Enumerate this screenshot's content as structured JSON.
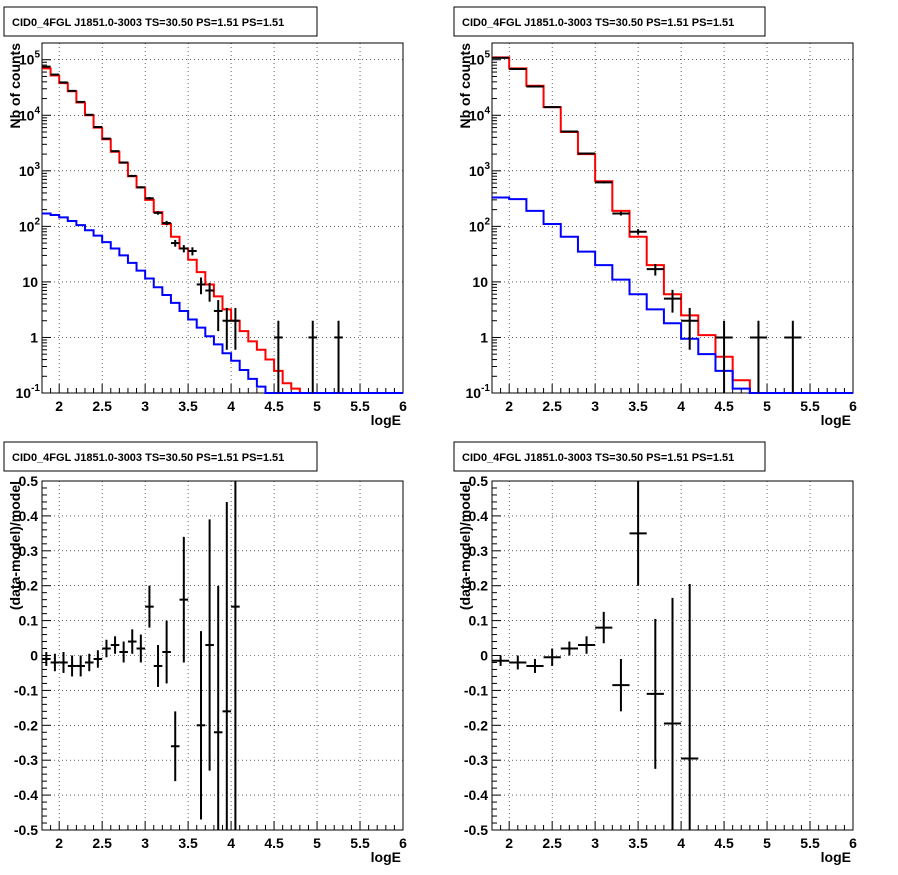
{
  "chart_data": [
    {
      "type": "histogram",
      "title": "CID0_4FGL J1851.0-3003 TS=30.50 PS=1.51 PS=1.51",
      "xlabel": "logE",
      "ylabel": "Nb of counts",
      "xlim": [
        1.8,
        6.0
      ],
      "ylim": [
        0.1,
        200000
      ],
      "yscale": "log",
      "grid": true,
      "x_ticks": [
        "2",
        "2.5",
        "3",
        "3.5",
        "4",
        "4.5",
        "5",
        "5.5",
        "6"
      ],
      "y_ticks": [
        "10^-1",
        "1",
        "10",
        "10^2",
        "10^3",
        "10^4",
        "10^5"
      ],
      "bin_width": 0.1,
      "series": [
        {
          "color": "#ff0000",
          "kind": "step",
          "x": [
            1.8,
            1.9,
            2.0,
            2.1,
            2.2,
            2.3,
            2.4,
            2.5,
            2.6,
            2.7,
            2.8,
            2.9,
            3.0,
            3.1,
            3.2,
            3.3,
            3.4,
            3.5,
            3.6,
            3.7,
            3.8,
            3.9,
            4.0,
            4.1,
            4.2,
            4.3,
            4.4,
            4.5,
            4.6,
            4.7,
            4.8,
            4.9,
            5.0,
            5.1
          ],
          "values": [
            70000,
            52000,
            38000,
            27000,
            17000,
            10000,
            6000,
            3700,
            2200,
            1400,
            800,
            500,
            300,
            180,
            110,
            65,
            40,
            25,
            15,
            9,
            5.5,
            3.2,
            2,
            1.3,
            0.85,
            0.6,
            0.4,
            0.25,
            0.15,
            0.12,
            0.1,
            0.1,
            0.1,
            0.1
          ]
        },
        {
          "color": "#0000ff",
          "kind": "step",
          "x": [
            1.8,
            1.9,
            2.0,
            2.1,
            2.2,
            2.3,
            2.4,
            2.5,
            2.6,
            2.7,
            2.8,
            2.9,
            3.0,
            3.1,
            3.2,
            3.3,
            3.4,
            3.5,
            3.6,
            3.7,
            3.8,
            3.9,
            4.0,
            4.1,
            4.2,
            4.3,
            4.4,
            4.5,
            4.6,
            4.7,
            4.8,
            4.9,
            5.0,
            5.1
          ],
          "values": [
            170,
            160,
            145,
            125,
            105,
            85,
            68,
            52,
            40,
            30,
            22,
            16,
            11.5,
            8,
            5.8,
            4.2,
            3,
            2.1,
            1.5,
            1.05,
            0.75,
            0.52,
            0.38,
            0.26,
            0.18,
            0.13,
            0.1,
            0.1,
            0.1,
            0.1,
            0.1,
            0.1,
            0.1,
            0.1
          ]
        },
        {
          "color": "#000000",
          "kind": "errorbar",
          "x": [
            1.85,
            1.95,
            2.05,
            2.15,
            2.25,
            2.35,
            2.45,
            2.55,
            2.65,
            2.75,
            2.85,
            2.95,
            3.05,
            3.15,
            3.25,
            3.35,
            3.45,
            3.55,
            3.65,
            3.75,
            3.85,
            3.95,
            4.05,
            4.55,
            4.95,
            5.25
          ],
          "values": [
            75000,
            54000,
            39000,
            27500,
            17400,
            10200,
            6150,
            3800,
            2260,
            1410,
            810,
            505,
            320,
            175,
            115,
            50,
            40,
            36,
            9,
            7,
            3,
            2,
            2,
            1,
            1,
            1
          ],
          "xerr": 0.05,
          "yerr_low": [
            270,
            230,
            200,
            165,
            130,
            100,
            78,
            62,
            48,
            37,
            28,
            22,
            18,
            13,
            10.5,
            7,
            6,
            6,
            3,
            2.6,
            1.7,
            1.4,
            1.4,
            0.9,
            0.9,
            0.9
          ],
          "yerr_high": [
            270,
            230,
            200,
            165,
            130,
            100,
            78,
            62,
            48,
            37,
            28,
            22,
            18,
            13,
            10.5,
            7,
            6,
            6,
            3,
            2.6,
            1.7,
            1.4,
            1.4,
            1,
            1,
            1
          ]
        }
      ]
    },
    {
      "type": "histogram",
      "title": "CID0_4FGL J1851.0-3003 TS=30.50 PS=1.51 PS=1.51",
      "xlabel": "logE",
      "ylabel": "Nb of counts",
      "xlim": [
        1.8,
        6.0
      ],
      "ylim": [
        0.1,
        200000
      ],
      "yscale": "log",
      "grid": true,
      "x_ticks": [
        "2",
        "2.5",
        "3",
        "3.5",
        "4",
        "4.5",
        "5",
        "5.5",
        "6"
      ],
      "y_ticks": [
        "10^-1",
        "1",
        "10",
        "10^2",
        "10^3",
        "10^4",
        "10^5"
      ],
      "bin_width": 0.2,
      "series": [
        {
          "color": "#ff0000",
          "kind": "step",
          "x": [
            1.8,
            2.0,
            2.2,
            2.4,
            2.6,
            2.8,
            3.0,
            3.2,
            3.4,
            3.6,
            3.8,
            4.0,
            4.2,
            4.4,
            4.6,
            4.8,
            5.0
          ],
          "values": [
            110000,
            70000,
            34000,
            14000,
            5000,
            2000,
            650,
            190,
            65,
            20,
            6,
            2.5,
            1.1,
            0.45,
            0.17,
            0.1,
            0.1
          ]
        },
        {
          "color": "#0000ff",
          "kind": "step",
          "x": [
            1.8,
            2.0,
            2.2,
            2.4,
            2.6,
            2.8,
            3.0,
            3.2,
            3.4,
            3.6,
            3.8,
            4.0,
            4.2,
            4.4,
            4.6,
            4.8,
            5.0
          ],
          "values": [
            330,
            310,
            190,
            110,
            65,
            35,
            20,
            11,
            6,
            3.2,
            1.8,
            0.95,
            0.5,
            0.25,
            0.12,
            0.1,
            0.1
          ]
        },
        {
          "color": "#000000",
          "kind": "errorbar",
          "x": [
            1.9,
            2.1,
            2.3,
            2.5,
            2.7,
            2.9,
            3.1,
            3.3,
            3.5,
            3.7,
            3.9,
            4.1,
            4.5,
            4.9,
            5.3
          ],
          "values": [
            108000,
            68000,
            33000,
            14000,
            5100,
            2050,
            620,
            170,
            80,
            17,
            5,
            2,
            1,
            1,
            1
          ],
          "xerr": 0.1,
          "yerr_low": [
            330,
            260,
            180,
            118,
            71,
            45,
            25,
            13,
            9,
            4,
            2.2,
            1.4,
            0.9,
            0.9,
            0.9
          ],
          "yerr_high": [
            330,
            260,
            180,
            118,
            71,
            45,
            25,
            13,
            9,
            4,
            2.2,
            1.4,
            1,
            1,
            1
          ]
        }
      ]
    },
    {
      "type": "scatter",
      "title": "CID0_4FGL J1851.0-3003 TS=30.50 PS=1.51 PS=1.51",
      "xlabel": "logE",
      "ylabel": "(data-model)/model",
      "xlim": [
        1.8,
        6.0
      ],
      "ylim": [
        -0.5,
        0.5
      ],
      "grid": true,
      "x_ticks": [
        "2",
        "2.5",
        "3",
        "3.5",
        "4",
        "4.5",
        "5",
        "5.5",
        "6"
      ],
      "y_ticks": [
        "-0.5",
        "-0.4",
        "-0.3",
        "-0.2",
        "-0.1",
        "0",
        "0.1",
        "0.2",
        "0.3",
        "0.4",
        "0.5"
      ],
      "series": [
        {
          "color": "#000000",
          "kind": "errorbar",
          "x": [
            1.85,
            1.95,
            2.05,
            2.15,
            2.25,
            2.35,
            2.45,
            2.55,
            2.65,
            2.75,
            2.85,
            2.95,
            3.05,
            3.15,
            3.25,
            3.35,
            3.45,
            3.65,
            3.75,
            3.85,
            3.95,
            4.05
          ],
          "values": [
            -0.01,
            -0.02,
            -0.02,
            -0.03,
            -0.03,
            -0.02,
            -0.01,
            0.02,
            0.03,
            0.01,
            0.04,
            0.02,
            0.14,
            -0.03,
            0.01,
            -0.26,
            0.16,
            -0.2,
            0.03,
            -0.22,
            -0.16,
            0.14
          ],
          "xerr": 0.05,
          "yerr": [
            0.02,
            0.025,
            0.03,
            0.03,
            0.03,
            0.025,
            0.025,
            0.025,
            0.025,
            0.03,
            0.035,
            0.04,
            0.06,
            0.06,
            0.09,
            0.1,
            0.18,
            0.27,
            0.36,
            0.42,
            0.6,
            0.9
          ]
        }
      ]
    },
    {
      "type": "scatter",
      "title": "CID0_4FGL J1851.0-3003 TS=30.50 PS=1.51 PS=1.51",
      "xlabel": "logE",
      "ylabel": "(data-model)/model",
      "xlim": [
        1.8,
        6.0
      ],
      "ylim": [
        -0.5,
        0.5
      ],
      "grid": true,
      "x_ticks": [
        "2",
        "2.5",
        "3",
        "3.5",
        "4",
        "4.5",
        "5",
        "5.5",
        "6"
      ],
      "y_ticks": [
        "-0.5",
        "-0.4",
        "-0.3",
        "-0.2",
        "-0.1",
        "0",
        "0.1",
        "0.2",
        "0.3",
        "0.4",
        "0.5"
      ],
      "series": [
        {
          "color": "#000000",
          "kind": "errorbar",
          "x": [
            1.9,
            2.1,
            2.3,
            2.5,
            2.7,
            2.9,
            3.1,
            3.3,
            3.5,
            3.7,
            3.9,
            4.1
          ],
          "values": [
            -0.015,
            -0.02,
            -0.03,
            -0.005,
            0.02,
            0.03,
            0.08,
            -0.085,
            0.35,
            -0.11,
            -0.195,
            -0.295
          ],
          "xerr": 0.1,
          "yerr": [
            0.015,
            0.02,
            0.02,
            0.025,
            0.02,
            0.025,
            0.045,
            0.075,
            0.15,
            0.215,
            0.36,
            0.5
          ]
        }
      ]
    }
  ]
}
